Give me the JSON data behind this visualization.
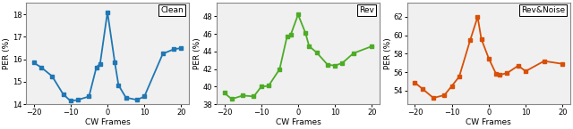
{
  "subplots": [
    {
      "label": "Clean",
      "color": "#1f77b4",
      "x": [
        -20,
        -18,
        -15,
        -12,
        -10,
        -8,
        -5,
        -3,
        -2,
        0,
        2,
        3,
        5,
        8,
        10,
        15,
        18,
        20
      ],
      "y": [
        15.85,
        15.65,
        15.25,
        14.45,
        14.15,
        14.2,
        14.35,
        15.65,
        15.8,
        18.1,
        15.85,
        14.85,
        14.3,
        14.2,
        14.35,
        16.25,
        16.45,
        16.5
      ],
      "ylim": [
        14.0,
        18.5
      ],
      "yticks": [
        14,
        15,
        16,
        17,
        18
      ],
      "ylabel": "PER (%)"
    },
    {
      "label": "Rev",
      "color": "#4dac26",
      "x": [
        -20,
        -18,
        -15,
        -12,
        -10,
        -8,
        -5,
        -3,
        -2,
        0,
        2,
        3,
        5,
        8,
        10,
        12,
        15,
        20
      ],
      "y": [
        39.3,
        38.6,
        39.0,
        38.9,
        40.0,
        40.1,
        42.0,
        45.7,
        45.9,
        48.2,
        46.1,
        44.6,
        43.9,
        42.5,
        42.4,
        42.7,
        43.8,
        44.6
      ],
      "ylim": [
        38.0,
        49.5
      ],
      "yticks": [
        38,
        40,
        42,
        44,
        46,
        48
      ],
      "ylabel": "PER (%)"
    },
    {
      "label": "Rev&Noise",
      "color": "#d94f05",
      "x": [
        -20,
        -18,
        -15,
        -12,
        -10,
        -8,
        -5,
        -3,
        -2,
        0,
        2,
        3,
        5,
        8,
        10,
        15,
        20
      ],
      "y": [
        54.85,
        54.2,
        53.2,
        53.5,
        54.5,
        55.5,
        59.5,
        62.0,
        59.6,
        57.5,
        55.8,
        55.7,
        55.9,
        56.7,
        56.1,
        57.2,
        56.9
      ],
      "ylim": [
        52.5,
        63.5
      ],
      "yticks": [
        54,
        56,
        58,
        60,
        62
      ],
      "ylabel": "PER (%)"
    }
  ],
  "xlabel": "CW Frames",
  "xlim": [
    -22,
    22
  ],
  "xticks": [
    -20,
    -10,
    0,
    10,
    20
  ],
  "marker": "s",
  "markersize": 3.5,
  "linewidth": 1.3,
  "spine_color": "#888888",
  "bg_color": "#f0f0f0"
}
